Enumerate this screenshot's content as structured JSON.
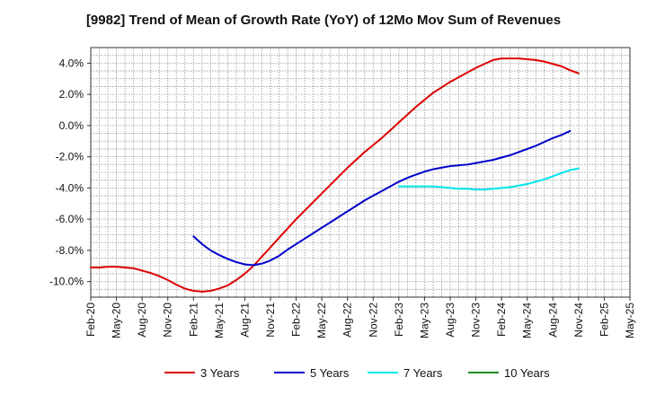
{
  "chart_data": {
    "type": "line",
    "title": "[9982]  Trend of Mean of Growth Rate (YoY) of 12Mo Mov Sum of Revenues",
    "xlabel": "",
    "ylabel": "",
    "ylim": [
      -11.0,
      5.0
    ],
    "yticks": [
      4.0,
      2.0,
      0.0,
      -2.0,
      -4.0,
      -6.0,
      -8.0,
      -10.0
    ],
    "ytick_labels": [
      "4.0%",
      "2.0%",
      "0.0%",
      "-2.0%",
      "-4.0%",
      "-6.0%",
      "-8.0%",
      "-10.0%"
    ],
    "x_tick_labels": [
      "Feb-20",
      "May-20",
      "Aug-20",
      "Nov-20",
      "Feb-21",
      "May-21",
      "Aug-21",
      "Nov-21",
      "Feb-22",
      "May-22",
      "Aug-22",
      "Nov-22",
      "Feb-23",
      "May-23",
      "Aug-23",
      "Nov-23",
      "Feb-24",
      "May-24",
      "Aug-24",
      "Nov-24",
      "Feb-25",
      "May-25"
    ],
    "grid": true,
    "legend_position": "bottom",
    "series": [
      {
        "name": "3 Years",
        "color": "#dd0000",
        "points": [
          [
            0,
            -9.1
          ],
          [
            1,
            -9.1
          ],
          [
            2,
            -9.05
          ],
          [
            3,
            -9.05
          ],
          [
            4,
            -9.1
          ],
          [
            5,
            -9.15
          ],
          [
            6,
            -9.3
          ],
          [
            7,
            -9.45
          ],
          [
            8,
            -9.65
          ],
          [
            9,
            -9.9
          ],
          [
            10,
            -10.2
          ],
          [
            11,
            -10.45
          ],
          [
            12,
            -10.6
          ],
          [
            13,
            -10.65
          ],
          [
            14,
            -10.6
          ],
          [
            15,
            -10.45
          ],
          [
            16,
            -10.25
          ],
          [
            17,
            -9.9
          ],
          [
            18,
            -9.5
          ],
          [
            19,
            -9.0
          ],
          [
            20,
            -8.4
          ],
          [
            21,
            -7.8
          ],
          [
            22,
            -7.2
          ],
          [
            23,
            -6.6
          ],
          [
            24,
            -6.0
          ],
          [
            25,
            -5.45
          ],
          [
            26,
            -4.9
          ],
          [
            27,
            -4.35
          ],
          [
            28,
            -3.8
          ],
          [
            29,
            -3.25
          ],
          [
            30,
            -2.7
          ],
          [
            31,
            -2.2
          ],
          [
            32,
            -1.7
          ],
          [
            33,
            -1.25
          ],
          [
            34,
            -0.8
          ],
          [
            35,
            -0.3
          ],
          [
            36,
            0.2
          ],
          [
            37,
            0.7
          ],
          [
            38,
            1.2
          ],
          [
            39,
            1.65
          ],
          [
            40,
            2.1
          ],
          [
            41,
            2.45
          ],
          [
            42,
            2.8
          ],
          [
            43,
            3.1
          ],
          [
            44,
            3.4
          ],
          [
            45,
            3.7
          ],
          [
            46,
            3.95
          ],
          [
            47,
            4.2
          ],
          [
            48,
            4.3
          ],
          [
            49,
            4.3
          ],
          [
            50,
            4.3
          ],
          [
            51,
            4.25
          ],
          [
            52,
            4.2
          ],
          [
            53,
            4.1
          ],
          [
            54,
            3.95
          ],
          [
            55,
            3.8
          ],
          [
            56,
            3.55
          ],
          [
            57,
            3.35
          ]
        ]
      },
      {
        "name": "5 Years",
        "color": "#0000cc",
        "points": [
          [
            12,
            -7.1
          ],
          [
            13,
            -7.6
          ],
          [
            14,
            -8.0
          ],
          [
            15,
            -8.3
          ],
          [
            16,
            -8.55
          ],
          [
            17,
            -8.75
          ],
          [
            18,
            -8.9
          ],
          [
            19,
            -8.95
          ],
          [
            20,
            -8.85
          ],
          [
            21,
            -8.65
          ],
          [
            22,
            -8.35
          ],
          [
            23,
            -7.95
          ],
          [
            24,
            -7.6
          ],
          [
            25,
            -7.25
          ],
          [
            26,
            -6.9
          ],
          [
            27,
            -6.55
          ],
          [
            28,
            -6.2
          ],
          [
            29,
            -5.85
          ],
          [
            30,
            -5.5
          ],
          [
            31,
            -5.15
          ],
          [
            32,
            -4.8
          ],
          [
            33,
            -4.5
          ],
          [
            34,
            -4.2
          ],
          [
            35,
            -3.9
          ],
          [
            36,
            -3.6
          ],
          [
            37,
            -3.35
          ],
          [
            38,
            -3.15
          ],
          [
            39,
            -2.95
          ],
          [
            40,
            -2.8
          ],
          [
            41,
            -2.7
          ],
          [
            42,
            -2.6
          ],
          [
            43,
            -2.55
          ],
          [
            44,
            -2.5
          ],
          [
            45,
            -2.4
          ],
          [
            46,
            -2.3
          ],
          [
            47,
            -2.2
          ],
          [
            48,
            -2.05
          ],
          [
            49,
            -1.9
          ],
          [
            50,
            -1.7
          ],
          [
            51,
            -1.5
          ],
          [
            52,
            -1.3
          ],
          [
            53,
            -1.05
          ],
          [
            54,
            -0.8
          ],
          [
            55,
            -0.6
          ],
          [
            56,
            -0.35
          ]
        ]
      },
      {
        "name": "7 Years",
        "color": "#00e5ee",
        "points": [
          [
            36,
            -3.9
          ],
          [
            37,
            -3.9
          ],
          [
            38,
            -3.9
          ],
          [
            39,
            -3.9
          ],
          [
            40,
            -3.9
          ],
          [
            41,
            -3.95
          ],
          [
            42,
            -4.0
          ],
          [
            43,
            -4.05
          ],
          [
            44,
            -4.05
          ],
          [
            45,
            -4.1
          ],
          [
            46,
            -4.1
          ],
          [
            47,
            -4.05
          ],
          [
            48,
            -4.0
          ],
          [
            49,
            -3.95
          ],
          [
            50,
            -3.85
          ],
          [
            51,
            -3.75
          ],
          [
            52,
            -3.6
          ],
          [
            53,
            -3.45
          ],
          [
            54,
            -3.25
          ],
          [
            55,
            -3.05
          ],
          [
            56,
            -2.85
          ],
          [
            57,
            -2.75
          ]
        ]
      },
      {
        "name": "10 Years",
        "color": "#228b22",
        "points": []
      }
    ]
  }
}
